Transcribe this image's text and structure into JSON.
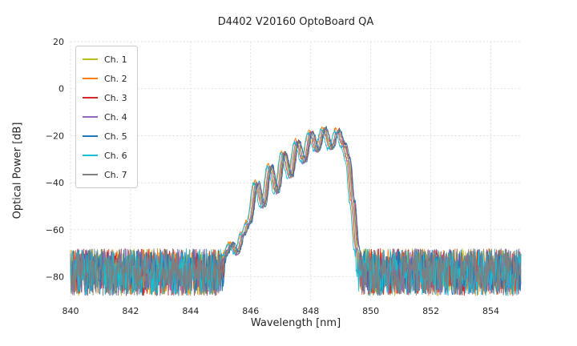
{
  "chart_data": {
    "type": "line",
    "title": "D4402 V20160 OptoBoard QA",
    "xlabel": "Wavelength [nm]",
    "ylabel": "Optical Power [dB]",
    "xlim": [
      840,
      855
    ],
    "ylim": [
      -90,
      20
    ],
    "xticks": [
      840,
      842,
      844,
      846,
      848,
      850,
      852,
      854
    ],
    "yticks": [
      20,
      0,
      -20,
      -40,
      -60,
      -80
    ],
    "grid": true,
    "legend_position": "upper left",
    "noise": {
      "band_high": -68,
      "band_low": -88,
      "signal_jitter": 1.6,
      "step_nm": 0.015
    },
    "envelope": [
      [
        840.0,
        -95
      ],
      [
        844.9,
        -95
      ],
      [
        845.15,
        -71
      ],
      [
        845.35,
        -66
      ],
      [
        845.55,
        -70
      ],
      [
        845.75,
        -62
      ],
      [
        845.95,
        -57
      ],
      [
        846.2,
        -40
      ],
      [
        846.42,
        -50
      ],
      [
        846.65,
        -33
      ],
      [
        846.88,
        -44
      ],
      [
        847.1,
        -27.5
      ],
      [
        847.33,
        -37.5
      ],
      [
        847.55,
        -22.5
      ],
      [
        847.78,
        -31
      ],
      [
        848.0,
        -18.5
      ],
      [
        848.22,
        -26.5
      ],
      [
        848.45,
        -17
      ],
      [
        848.68,
        -25.5
      ],
      [
        848.9,
        -17.8
      ],
      [
        849.1,
        -24
      ],
      [
        849.25,
        -30
      ],
      [
        849.4,
        -48
      ],
      [
        849.55,
        -68
      ],
      [
        849.7,
        -95
      ],
      [
        855.2,
        -95
      ]
    ],
    "series": [
      {
        "name": "Ch. 1",
        "color": "#bcbd22",
        "dx": 0.0,
        "dy": 0.0,
        "seed": 101
      },
      {
        "name": "Ch. 2",
        "color": "#ff7f0e",
        "dx": -0.07,
        "dy": 0.8,
        "seed": 202
      },
      {
        "name": "Ch. 3",
        "color": "#d62728",
        "dx": 0.05,
        "dy": 0.4,
        "seed": 303
      },
      {
        "name": "Ch. 4",
        "color": "#9467bd",
        "dx": -0.03,
        "dy": -0.5,
        "seed": 404
      },
      {
        "name": "Ch. 5",
        "color": "#1f77b4",
        "dx": 0.07,
        "dy": 0.3,
        "seed": 505
      },
      {
        "name": "Ch. 6",
        "color": "#17becf",
        "dx": -0.1,
        "dy": -0.3,
        "seed": 606
      },
      {
        "name": "Ch. 7",
        "color": "#7f7f7f",
        "dx": 0.02,
        "dy": 0.0,
        "seed": 707
      }
    ]
  }
}
